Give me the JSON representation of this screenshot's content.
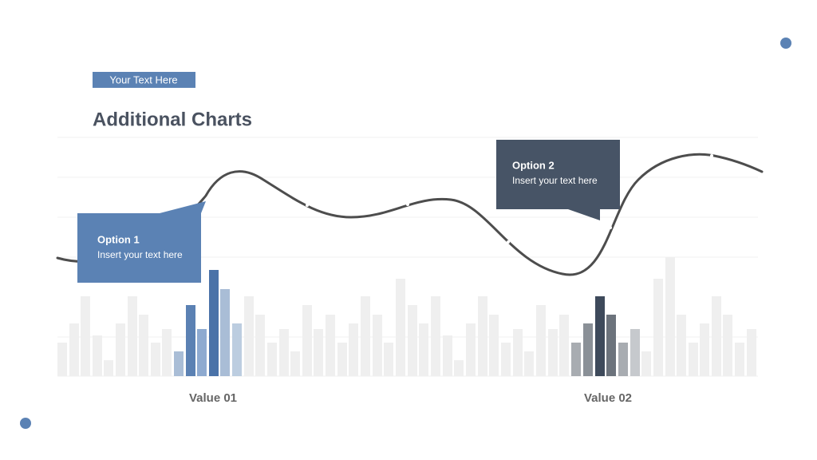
{
  "header": {
    "tag": "Your Text Here",
    "title": "Additional Charts"
  },
  "callouts": [
    {
      "title": "Option 1",
      "text": "Insert your text here"
    },
    {
      "title": "Option 2",
      "text": "Insert your text here"
    }
  ],
  "labels": [
    "Value 01",
    "Value 02"
  ]
}
